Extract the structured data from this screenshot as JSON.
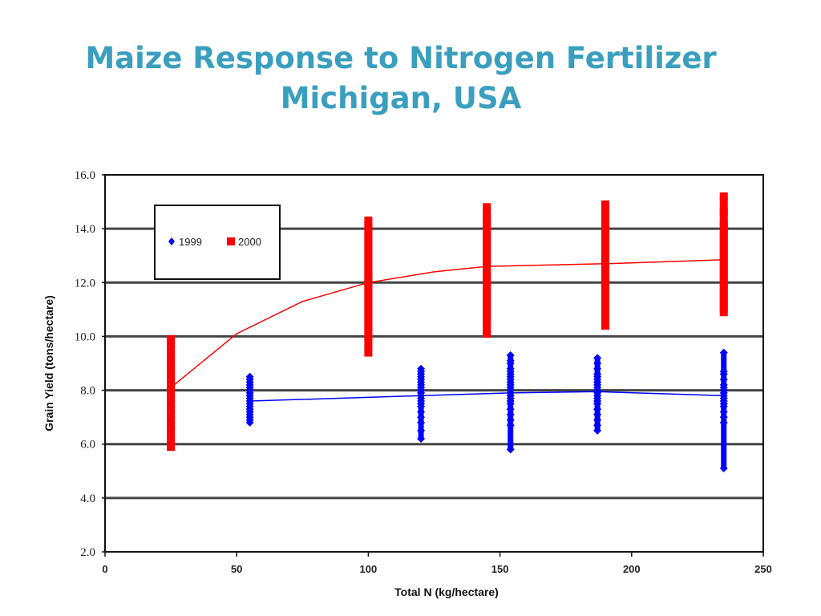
{
  "slide": {
    "title_line1": "Maize Response to Nitrogen Fertilizer",
    "title_line2": "Michigan, USA",
    "title_color": "#3a9fbf"
  },
  "chart_data": {
    "type": "scatter",
    "title": "Maize Response to Nitrogen Fertilizer Michigan, USA",
    "xlabel": "Total N (kg/hectare)",
    "ylabel": "Grain Yield (tons/hectare)",
    "xlim": [
      0,
      250
    ],
    "ylim": [
      2.0,
      16.0
    ],
    "x_ticks": [
      "0",
      "50",
      "100",
      "150",
      "200",
      "250"
    ],
    "y_ticks": [
      "2.0",
      "4.0",
      "6.0",
      "8.0",
      "10.0",
      "12.0",
      "14.0",
      "16.0"
    ],
    "grid": "horizontal",
    "legend": {
      "position": "top-left",
      "entries": [
        "1999",
        "2000"
      ]
    },
    "series": [
      {
        "name": "1999",
        "color": "#0000ff",
        "marker": "diamond",
        "points": [
          {
            "x": 55,
            "y_min": 6.8,
            "y_max": 8.5,
            "y_values": [
              6.8,
              6.9,
              7.0,
              7.1,
              7.2,
              7.3,
              7.4,
              7.5,
              7.6,
              7.7,
              7.8,
              7.9,
              8.0,
              8.1,
              8.2,
              8.3,
              8.4,
              8.5
            ]
          },
          {
            "x": 120,
            "y_min": 6.2,
            "y_max": 8.8,
            "y_values": [
              6.2,
              6.5,
              6.8,
              7.0,
              7.2,
              7.4,
              7.5,
              7.6,
              7.7,
              7.8,
              7.9,
              8.0,
              8.1,
              8.2,
              8.3,
              8.4,
              8.5,
              8.6,
              8.7,
              8.8
            ]
          },
          {
            "x": 154,
            "y_min": 5.8,
            "y_max": 9.3,
            "y_values": [
              5.8,
              6.7,
              6.9,
              7.1,
              7.3,
              7.5,
              7.6,
              7.7,
              7.8,
              7.9,
              8.0,
              8.1,
              8.2,
              8.3,
              8.4,
              8.5,
              8.6,
              8.7,
              8.8,
              9.0,
              9.1,
              9.3
            ]
          },
          {
            "x": 187,
            "y_min": 6.5,
            "y_max": 9.2,
            "y_values": [
              6.5,
              6.7,
              6.9,
              7.1,
              7.3,
              7.5,
              7.6,
              7.7,
              7.8,
              7.9,
              8.0,
              8.1,
              8.2,
              8.3,
              8.4,
              8.5,
              8.6,
              8.8,
              9.0,
              9.2
            ]
          },
          {
            "x": 235,
            "y_min": 5.1,
            "y_max": 9.4,
            "y_values": [
              5.1,
              6.8,
              7.0,
              7.2,
              7.4,
              7.5,
              7.6,
              7.7,
              7.8,
              7.9,
              8.0,
              8.1,
              8.2,
              8.4,
              8.6,
              8.7,
              9.4
            ]
          }
        ],
        "trend": [
          {
            "x": 55,
            "y": 7.6
          },
          {
            "x": 120,
            "y": 7.8
          },
          {
            "x": 154,
            "y": 7.9
          },
          {
            "x": 187,
            "y": 7.95
          },
          {
            "x": 235,
            "y": 7.8
          }
        ]
      },
      {
        "name": "2000",
        "color": "#ff0000",
        "marker": "square",
        "points": [
          {
            "x": 25,
            "y_min": 5.9,
            "y_max": 9.9,
            "y_values": [
              5.9,
              6.2,
              6.5,
              6.7,
              6.9,
              7.1,
              7.3,
              7.5,
              7.7,
              7.9,
              8.1,
              8.3,
              8.5,
              8.7,
              8.9,
              9.1,
              9.3,
              9.5,
              9.7,
              9.9
            ]
          },
          {
            "x": 100,
            "y_min": 9.4,
            "y_max": 14.3,
            "y_values": [
              9.4,
              10.0,
              10.3,
              10.6,
              10.9,
              11.2,
              11.5,
              11.8,
              12.0,
              12.2,
              12.5,
              12.8,
              13.1,
              13.4,
              13.7,
              14.0,
              14.3
            ]
          },
          {
            "x": 145,
            "y_min": 10.1,
            "y_max": 14.8,
            "y_values": [
              10.1,
              10.5,
              10.8,
              11.1,
              11.4,
              11.7,
              12.0,
              12.3,
              12.6,
              12.9,
              13.2,
              13.5,
              13.8,
              14.1,
              14.4,
              14.8
            ]
          },
          {
            "x": 190,
            "y_min": 10.4,
            "y_max": 14.9,
            "y_values": [
              10.4,
              10.7,
              11.0,
              11.3,
              11.6,
              11.9,
              12.2,
              12.5,
              12.8,
              13.1,
              13.4,
              13.7,
              14.0,
              14.3,
              14.6,
              14.9
            ]
          },
          {
            "x": 235,
            "y_min": 10.9,
            "y_max": 15.2,
            "y_values": [
              10.9,
              11.2,
              11.5,
              11.8,
              12.1,
              12.4,
              12.7,
              13.0,
              13.3,
              13.6,
              13.9,
              14.2,
              14.6,
              15.2
            ]
          }
        ],
        "trend": [
          {
            "x": 25,
            "y": 8.1
          },
          {
            "x": 50,
            "y": 10.1
          },
          {
            "x": 75,
            "y": 11.3
          },
          {
            "x": 100,
            "y": 12.0
          },
          {
            "x": 125,
            "y": 12.4
          },
          {
            "x": 145,
            "y": 12.6
          },
          {
            "x": 190,
            "y": 12.7
          },
          {
            "x": 235,
            "y": 12.85
          }
        ]
      }
    ]
  }
}
